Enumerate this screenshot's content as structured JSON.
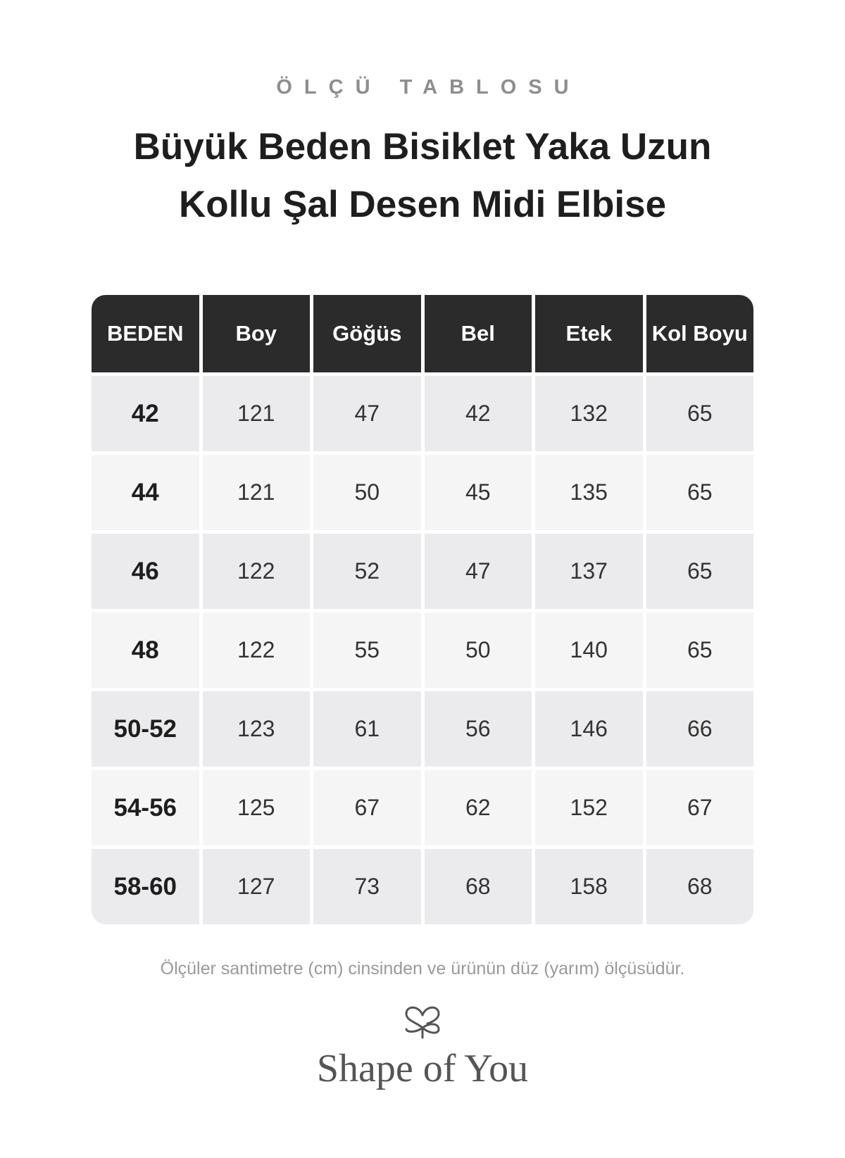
{
  "header": {
    "kicker": "ÖLÇÜ TABLOSU",
    "title": [
      "Büyük Beden Bisiklet Yaka Uzun",
      "Kollu Şal Desen Midi Elbise"
    ]
  },
  "table": {
    "columns": [
      "BEDEN",
      "Boy",
      "Göğüs",
      "Bel",
      "Etek",
      "Kol Boyu"
    ],
    "rows": [
      [
        "42",
        121,
        47,
        42,
        132,
        65
      ],
      [
        "44",
        121,
        50,
        45,
        135,
        65
      ],
      [
        "46",
        122,
        52,
        47,
        137,
        65
      ],
      [
        "48",
        122,
        55,
        50,
        140,
        65
      ],
      [
        "50-52",
        123,
        61,
        56,
        146,
        66
      ],
      [
        "54-56",
        125,
        67,
        62,
        152,
        67
      ],
      [
        "58-60",
        127,
        73,
        68,
        158,
        68
      ]
    ]
  },
  "footer": {
    "note": "Ölçüler santimetre (cm) cinsinden ve ürünün düz (yarım) ölçüsüdür.",
    "brand": "Shape of You"
  }
}
